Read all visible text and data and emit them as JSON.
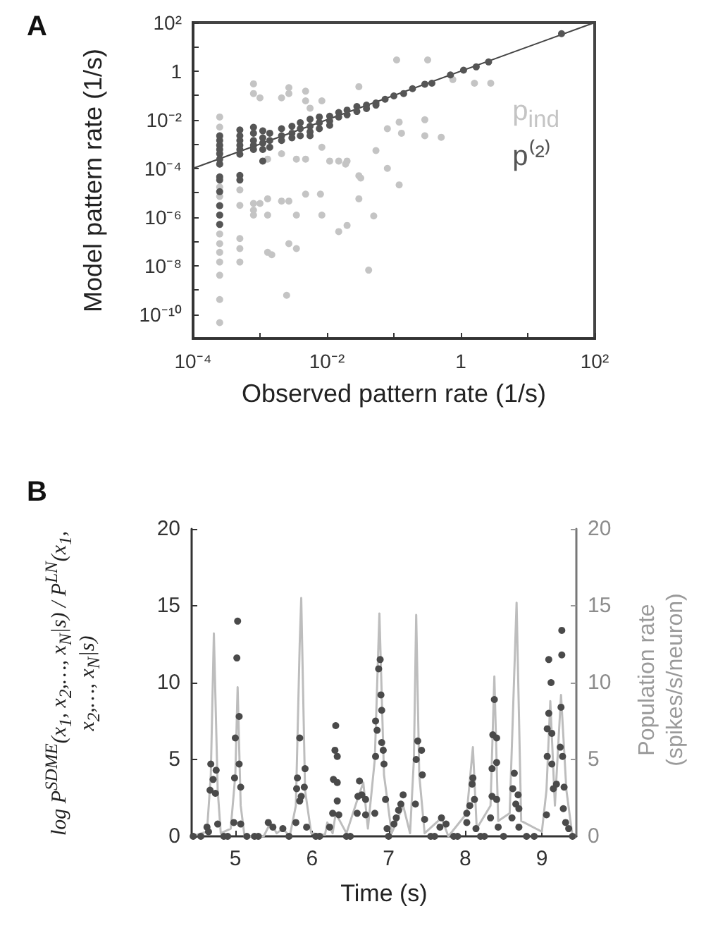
{
  "chart_data": [
    {
      "type": "scatter",
      "title": "A",
      "xlabel": "Observed pattern rate (1/s)",
      "ylabel": "Model pattern rate (1/s)",
      "log": "xy",
      "grid": false,
      "legend": "right",
      "xlim": [
        0.0001,
        100
      ],
      "xticks": [
        {
          "value": 0.0001,
          "label": "10⁻⁴"
        },
        {
          "value": 0.001,
          "label": null
        },
        {
          "value": 0.01,
          "label": "10⁻²"
        },
        {
          "value": 0.1,
          "label": null
        },
        1,
        {
          "value": 10,
          "label": null
        },
        {
          "value": 100,
          "label": "10²"
        }
      ],
      "ylim": [
        1e-11,
        100
      ],
      "yticks": [
        {
          "value": 1e-10,
          "label": "10⁻¹⁰"
        },
        {
          "value": 1e-09,
          "label": null
        },
        {
          "value": 1e-08,
          "label": "10⁻⁸"
        },
        {
          "value": 1e-07,
          "label": null
        },
        {
          "value": 1e-06,
          "label": "10⁻⁶"
        },
        {
          "value": 1e-05,
          "label": null
        },
        {
          "value": 0.0001,
          "label": "10⁻⁴"
        },
        {
          "value": 0.001,
          "label": null
        },
        {
          "value": 0.01,
          "label": "10⁻²"
        },
        {
          "value": 0.1,
          "label": null
        },
        1,
        {
          "value": 10,
          "label": null
        },
        {
          "value": 100,
          "label": "10²"
        }
      ],
      "series": [
        {
          "name": "p$_{ind}$",
          "color": "#c4c4c4",
          "marker": "circle",
          "x": [
            0.00025,
            0.00025,
            0.00025,
            0.00025,
            0.00025,
            0.00025,
            0.00025,
            0.00025,
            0.00025,
            0.00025,
            0.00025,
            0.00025,
            0.00025,
            0.00025,
            0.00025,
            0.00025,
            0.00025,
            0.00025,
            0.00025,
            0.0005,
            0.0005,
            0.0005,
            0.0005,
            0.0005,
            0.0008,
            0.0008,
            0.0008,
            0.0008,
            0.0008,
            0.001,
            0.001,
            0.0013,
            0.0013,
            0.0013,
            0.0013,
            0.0015,
            0.0021,
            0.0021,
            0.0021,
            0.0027,
            0.0027,
            0.0027,
            0.0027,
            0.0035,
            0.0035,
            0.0035,
            0.0048,
            0.0048,
            0.0048,
            0.0048,
            0.0056,
            0.0084,
            0.0084,
            0.0084,
            0.015,
            0.015,
            0.02,
            0.02,
            0.03,
            0.03,
            0.03,
            0.042,
            0.054,
            0.05,
            0.08,
            0.08,
            0.11,
            0.12,
            0.12,
            0.13,
            0.29,
            0.29,
            0.32,
            0.51,
            0.76,
            1.6,
            2.8,
            0.0025,
            0.032,
            0.011,
            0.019,
            0.008
          ],
          "values": [
            0.013,
            0.005,
            0.002,
            0.0009,
            0.0004,
            0.00015,
            4e-05,
            1.7e-05,
            7e-06,
            3e-06,
            1.2e-06,
            5e-07,
            2e-07,
            8e-08,
            3.5e-08,
            1.4e-08,
            4e-09,
            4e-10,
            4.5e-11,
            1.3e-05,
            3e-06,
            1.3e-07,
            5e-08,
            1.4e-08,
            0.3,
            0.12,
            3.6e-06,
            1.9e-06,
            1.2e-06,
            0.08,
            3.6e-06,
            0.00024,
            5.6e-06,
            1.2e-06,
            3.5e-08,
            2.8e-08,
            0.08,
            4.5e-06,
            0.0004,
            0.21,
            0.12,
            4.5e-06,
            8e-08,
            1.2e-06,
            5e-08,
            0.00024,
            0.15,
            0.06,
            0.00024,
            8.7e-06,
            0.03,
            0.06,
            0.00074,
            1.2e-06,
            0.0002,
            2.5e-07,
            0.0002,
            4.5e-07,
            0.23,
            5e-05,
            5.6e-06,
            6.5e-09,
            0.00054,
            1.1e-06,
            0.0043,
            0.0001,
            2.9,
            2.1e-05,
            0.008,
            0.0028,
            0.01,
            0.0022,
            2.9,
            0.0019,
            0.45,
            0.32,
            0.32,
            6e-10,
            4e-05,
            0.0002,
            0.00015,
            8.7e-06
          ]
        },
        {
          "name": "p⁽²⁾",
          "color": "#555555",
          "marker": "circle",
          "x": [
            0.00025,
            0.00025,
            0.00025,
            0.00025,
            0.00025,
            0.00025,
            0.00025,
            0.00025,
            0.00025,
            0.00025,
            0.00025,
            0.00025,
            0.00025,
            0.0005,
            0.0005,
            0.0005,
            0.0005,
            0.0005,
            0.0005,
            0.0005,
            0.0005,
            0.0008,
            0.0008,
            0.0008,
            0.0008,
            0.0008,
            0.0011,
            0.0011,
            0.0011,
            0.0011,
            0.0011,
            0.0014,
            0.0014,
            0.0014,
            0.0021,
            0.0021,
            0.0021,
            0.003,
            0.003,
            0.003,
            0.004,
            0.004,
            0.004,
            0.0056,
            0.0056,
            0.0056,
            0.0056,
            0.0077,
            0.0077,
            0.0077,
            0.011,
            0.011,
            0.011,
            0.015,
            0.015,
            0.02,
            0.02,
            0.028,
            0.028,
            0.039,
            0.039,
            0.054,
            0.054,
            0.074,
            0.1,
            0.14,
            0.19,
            0.29,
            0.37,
            0.7,
            1.1,
            1.7,
            2.6,
            32
          ],
          "values": [
            0.0022,
            0.0014,
            0.0009,
            0.0006,
            0.0004,
            0.00024,
            0.00015,
            4.5e-05,
            3.3e-05,
            1.1e-05,
            2.9e-06,
            1.2e-06,
            4.9e-07,
            0.0038,
            0.0022,
            0.0014,
            0.0009,
            0.0006,
            0.00038,
            5.1e-05,
            3.3e-05,
            0.0049,
            0.0028,
            0.0014,
            0.0009,
            0.0006,
            0.0035,
            0.0018,
            0.0011,
            0.0006,
            0.0002,
            0.0028,
            0.0014,
            0.00074,
            0.0043,
            0.0022,
            0.0014,
            0.0054,
            0.0028,
            0.0018,
            0.0076,
            0.0043,
            0.0022,
            0.0105,
            0.0054,
            0.0032,
            0.0022,
            0.013,
            0.0076,
            0.0043,
            0.014,
            0.009,
            0.0059,
            0.02,
            0.013,
            0.025,
            0.016,
            0.035,
            0.022,
            0.04,
            0.029,
            0.049,
            0.04,
            0.07,
            0.096,
            0.12,
            0.19,
            0.29,
            0.32,
            0.7,
            1.1,
            1.5,
            2.4,
            35
          ]
        },
        {
          "type": "line",
          "color": "#444444",
          "x": [
            0.0001,
            100
          ],
          "values": [
            0.0001,
            100
          ]
        }
      ]
    },
    {
      "type": "scatter",
      "title": "B",
      "xlabel": "Time (s)",
      "ylabel": "log P$^{SDME}$(x$_{1}$, x$_{2}$,…, x$_{N}$|s) / P$^{LN}$(x$_{1}$, x$_{2}$,…, x$_{N}$|s)",
      "y2label": "Population rate (spikes/s/neuron)",
      "grid": false,
      "xlim": [
        4.43,
        9.45
      ],
      "xticks": [
        5,
        6,
        7,
        8,
        9
      ],
      "ylim": [
        0,
        20
      ],
      "yticks": [
        0,
        5,
        10,
        15,
        20
      ],
      "y2lim": [
        0,
        20
      ],
      "y2ticks": [
        0,
        5,
        10,
        15,
        20
      ],
      "series": [
        {
          "type": "line",
          "axis": "y2",
          "color": "#bdbdbd",
          "x": [
            4.43,
            4.63,
            4.68,
            4.72,
            4.77,
            4.81,
            4.94,
            5.0,
            5.03,
            5.07,
            5.12,
            5.37,
            5.46,
            5.54,
            5.62,
            5.71,
            5.79,
            5.84,
            5.86,
            5.91,
            5.99,
            6.17,
            6.2,
            6.27,
            6.31,
            6.45,
            6.6,
            6.67,
            6.73,
            6.82,
            6.88,
            6.94,
            7.04,
            7.19,
            7.28,
            7.33,
            7.36,
            7.4,
            7.47,
            7.69,
            7.78,
            8.02,
            8.1,
            8.15,
            8.33,
            8.38,
            8.43,
            8.58,
            8.67,
            8.73,
            9.0,
            9.06,
            9.11,
            9.17,
            9.25,
            9.32,
            9.4,
            9.45
          ],
          "values": [
            0,
            0.3,
            4,
            13.2,
            3,
            0.2,
            0.5,
            4,
            9.7,
            2,
            0,
            0,
            0.9,
            0.2,
            0.5,
            0,
            2,
            12.5,
            15.5,
            3,
            0.2,
            0.1,
            0.9,
            0.2,
            1.5,
            0.2,
            2.5,
            3.5,
            0.5,
            5,
            14.5,
            4,
            0.2,
            2,
            0.2,
            5,
            14.4,
            4,
            0.2,
            1.2,
            0,
            1.5,
            5.8,
            0.5,
            2,
            10.4,
            1,
            1.5,
            15.2,
            1,
            0.3,
            3,
            8.8,
            2,
            9.2,
            3,
            0,
            0
          ]
        },
        {
          "color": "#4a4a4a",
          "marker": "circle",
          "x": [
            4.68,
            4.71,
            4.67,
            4.74,
            4.75,
            4.77,
            4.63,
            4.65,
            5.03,
            5.02,
            5.05,
            5.0,
            5.05,
            4.99,
            5.07,
            4.98,
            5.07,
            5.43,
            5.49,
            5.62,
            5.84,
            5.91,
            5.81,
            5.9,
            5.8,
            5.86,
            5.84,
            5.79,
            5.93,
            6.31,
            6.3,
            6.33,
            6.28,
            6.33,
            6.33,
            6.27,
            6.35,
            6.23,
            6.62,
            6.65,
            6.7,
            6.59,
            6.7,
            6.6,
            6.89,
            6.87,
            6.9,
            6.91,
            6.83,
            6.85,
            6.91,
            6.93,
            6.83,
            6.94,
            6.96,
            6.82,
            6.98,
            7.19,
            7.16,
            7.13,
            7.1,
            7.07,
            7.38,
            7.43,
            7.36,
            7.44,
            7.35,
            7.47,
            7.69,
            7.67,
            7.75,
            8.1,
            8.09,
            8.12,
            8.06,
            8.02,
            8.02,
            8.14,
            8.38,
            8.36,
            8.41,
            8.41,
            8.35,
            8.35,
            8.41,
            8.33,
            8.43,
            8.64,
            8.62,
            8.69,
            8.66,
            8.7,
            8.61,
            8.7,
            9.09,
            9.12,
            9.09,
            9.07,
            9.13,
            9.07,
            9.13,
            9.06,
            9.26,
            9.26,
            9.25,
            9.24,
            9.27,
            9.19,
            9.15,
            9.29,
            9.28,
            9.31,
            9.35,
            4.45,
            4.55,
            4.85,
            4.9,
            5.15,
            5.25,
            5.3,
            5.7,
            6.05,
            6.1,
            6.45,
            6.5,
            7.0,
            7.55,
            7.6,
            7.85,
            7.9,
            8.2,
            8.25,
            8.5,
            8.8,
            8.9,
            9.4
          ],
          "values": [
            4.7,
            3.7,
            3.0,
            2.8,
            4.3,
            0.8,
            0.6,
            0.3,
            14.0,
            11.6,
            7.8,
            6.4,
            4.7,
            3.8,
            3.2,
            0.9,
            0.8,
            0.9,
            0.6,
            0.5,
            6.4,
            4.4,
            3.8,
            3.2,
            3.1,
            2.6,
            2.3,
            0.9,
            0.6,
            7.2,
            5.6,
            5.2,
            3.7,
            3.5,
            2.3,
            1.5,
            1.4,
            0.6,
            3.6,
            2.7,
            2.4,
            1.5,
            1.4,
            2.6,
            11.5,
            10.9,
            9.2,
            8.2,
            7.5,
            6.9,
            6.1,
            5.6,
            5.2,
            4.7,
            2.4,
            1.5,
            0.5,
            2.7,
            2.1,
            1.7,
            1.2,
            0.8,
            6.2,
            5.6,
            5.0,
            4.0,
            2.1,
            1.1,
            1.2,
            0.6,
            0.8,
            3.8,
            3.4,
            2.4,
            2.0,
            1.5,
            0.9,
            0.5,
            8.9,
            6.6,
            6.4,
            4.8,
            4.4,
            2.6,
            2.4,
            1.2,
            0.6,
            4.1,
            3.1,
            2.7,
            2.1,
            1.8,
            1.2,
            0.6,
            11.5,
            10.0,
            8.0,
            7.0,
            6.7,
            5.2,
            4.7,
            1.4,
            13.4,
            11.8,
            8.4,
            5.8,
            5.2,
            3.4,
            3.1,
            3.2,
            1.8,
            0.9,
            0.5,
            0,
            0,
            0,
            0,
            0,
            0,
            0,
            0,
            0,
            0,
            0,
            0,
            0,
            0,
            0,
            0,
            0,
            0,
            0,
            0,
            0,
            0,
            0
          ]
        }
      ]
    }
  ]
}
